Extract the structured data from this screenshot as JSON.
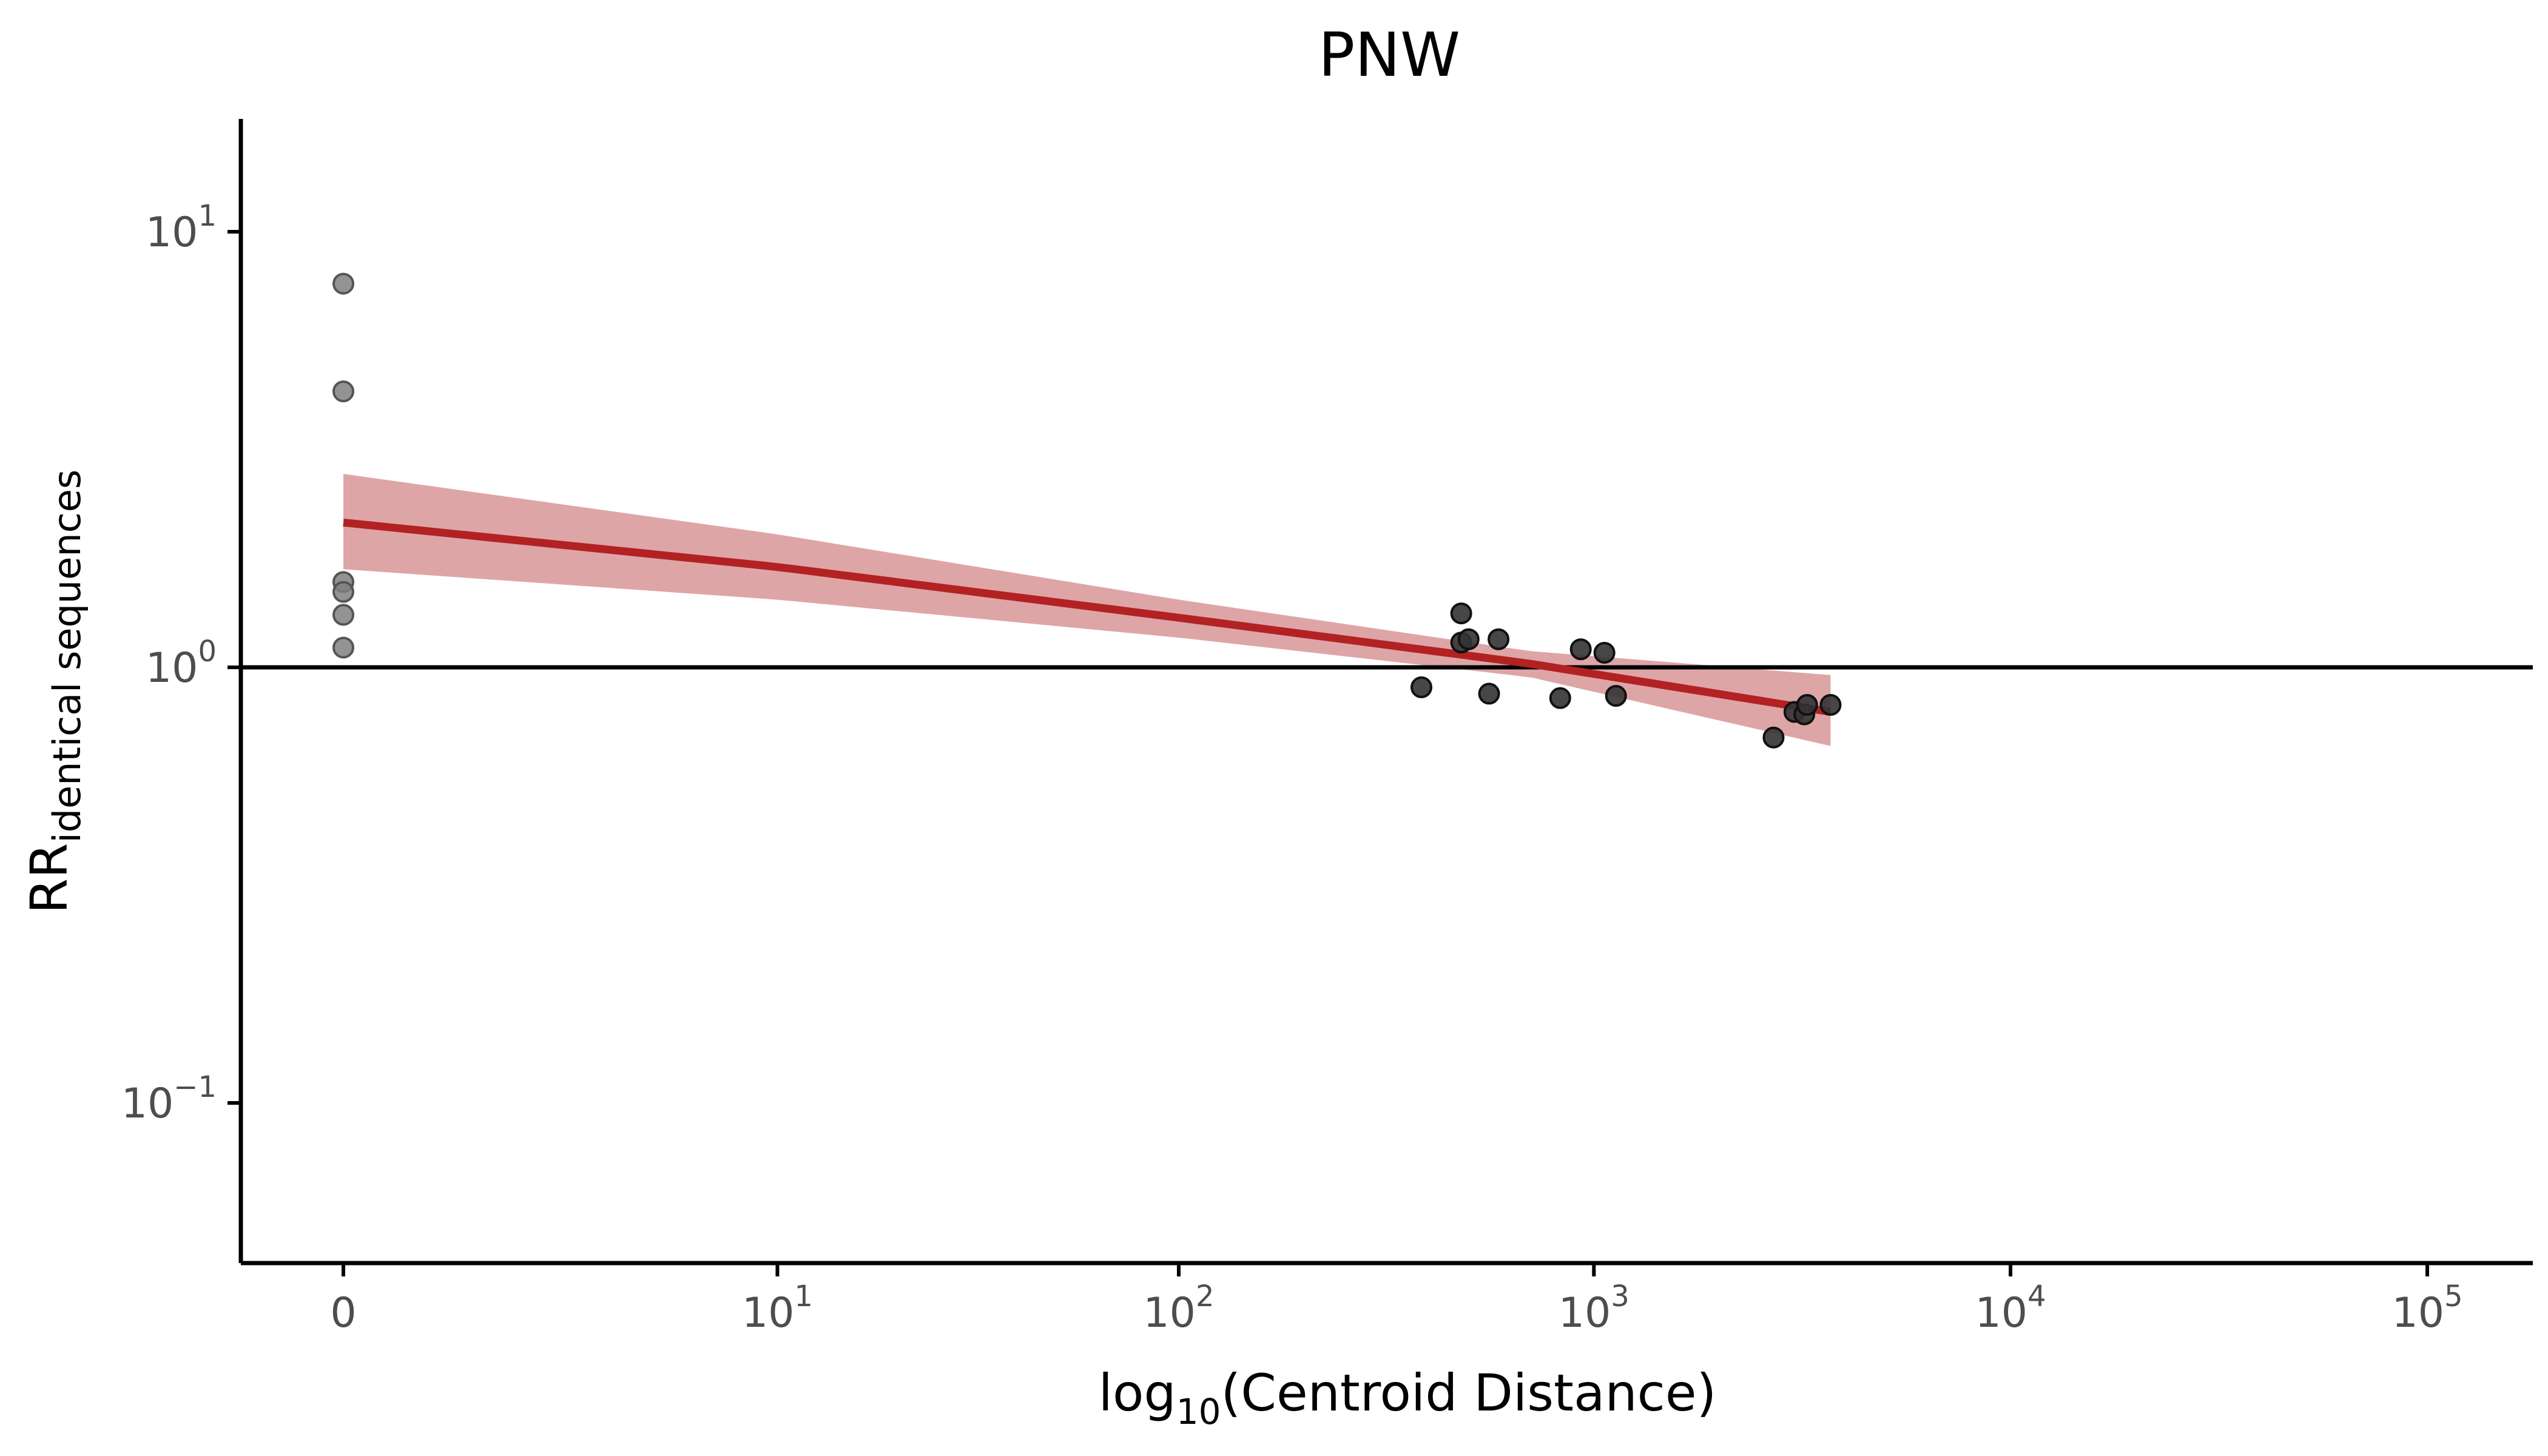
{
  "chart_data": {
    "type": "scatter",
    "title": "PNW",
    "xlabel": {
      "main": "log",
      "sub": "10",
      "rest": "(Centroid Distance)"
    },
    "ylabel": {
      "main": "RR",
      "sub": "identical sequences"
    },
    "x_scale": "log10(x+1)",
    "y_scale": "log10",
    "xlim": [
      0,
      500000
    ],
    "ylim": [
      0.048,
      17
    ],
    "x_ticks": [
      {
        "value": 0,
        "base": "0",
        "exp": ""
      },
      {
        "value": 10,
        "base": "10",
        "exp": "1"
      },
      {
        "value": 100,
        "base": "10",
        "exp": "2"
      },
      {
        "value": 1000,
        "base": "10",
        "exp": "3"
      },
      {
        "value": 10000,
        "base": "10",
        "exp": "4"
      },
      {
        "value": 100000,
        "base": "10",
        "exp": "5"
      }
    ],
    "y_ticks": [
      {
        "value": 10,
        "base": "10",
        "exp": "1"
      },
      {
        "value": 1,
        "base": "10",
        "exp": "0"
      },
      {
        "value": 0.1,
        "base": "10",
        "exp": "−1"
      }
    ],
    "reference_line": {
      "y": 1,
      "color": "#000000"
    },
    "grid": false,
    "legend": "none",
    "points_zero_distance": {
      "color": "#808080",
      "values": [
        {
          "x": 0,
          "y": 7.6
        },
        {
          "x": 0,
          "y": 4.3
        },
        {
          "x": 0,
          "y": 1.57
        },
        {
          "x": 0,
          "y": 1.49
        },
        {
          "x": 0,
          "y": 1.32
        },
        {
          "x": 0,
          "y": 1.11
        }
      ]
    },
    "points": {
      "color": "#333333",
      "values": [
        {
          "x": 385,
          "y": 0.9
        },
        {
          "x": 480,
          "y": 1.33
        },
        {
          "x": 480,
          "y": 1.14
        },
        {
          "x": 500,
          "y": 1.16
        },
        {
          "x": 560,
          "y": 0.87
        },
        {
          "x": 590,
          "y": 1.16
        },
        {
          "x": 830,
          "y": 0.85
        },
        {
          "x": 930,
          "y": 1.1
        },
        {
          "x": 1060,
          "y": 1.08
        },
        {
          "x": 1130,
          "y": 0.86
        },
        {
          "x": 2700,
          "y": 0.69
        },
        {
          "x": 3030,
          "y": 0.79
        },
        {
          "x": 3200,
          "y": 0.78
        },
        {
          "x": 3250,
          "y": 0.82
        },
        {
          "x": 3700,
          "y": 0.82
        }
      ]
    },
    "fit_line": {
      "color": "#b22222",
      "band_color": "#dca0a2",
      "values": [
        {
          "x": 0,
          "y": 2.15,
          "lo": 1.68,
          "hi": 2.78
        },
        {
          "x": 10,
          "y": 1.7,
          "lo": 1.43,
          "hi": 2.02
        },
        {
          "x": 100,
          "y": 1.3,
          "lo": 1.17,
          "hi": 1.43
        },
        {
          "x": 700,
          "y": 1.02,
          "lo": 0.95,
          "hi": 1.09
        },
        {
          "x": 3700,
          "y": 0.79,
          "lo": 0.66,
          "hi": 0.96
        }
      ]
    }
  }
}
